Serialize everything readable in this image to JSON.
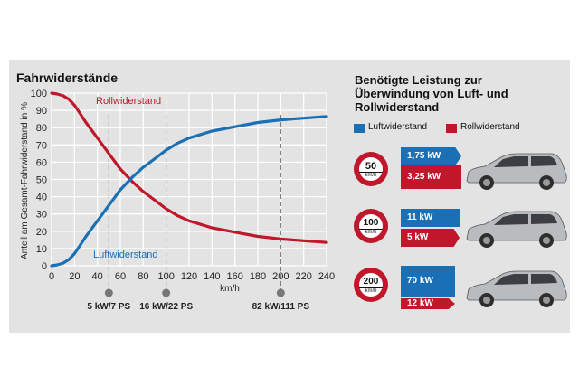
{
  "colors": {
    "air": "#1a6fb5",
    "roll": "#c0172b",
    "panel": "#e3e3e3",
    "grid": "#ffffff"
  },
  "chart_data": {
    "type": "line",
    "title": "Fahrwiderstände",
    "xlabel": "km/h",
    "ylabel": "Anteil am Gesamt-Fahrwiderstand in %",
    "xlim": [
      0,
      240
    ],
    "ylim": [
      0,
      100
    ],
    "xticks": [
      "0",
      "20",
      "40",
      "60",
      "80",
      "100",
      "120",
      "140",
      "160",
      "180",
      "200",
      "220",
      "240"
    ],
    "yticks": [
      "0",
      "10",
      "20",
      "30",
      "40",
      "50",
      "60",
      "70",
      "80",
      "90",
      "100"
    ],
    "grid": true,
    "series": [
      {
        "name": "Rollwiderstand",
        "color": "#c0172b",
        "x": [
          0,
          5,
          10,
          15,
          20,
          25,
          30,
          40,
          50,
          60,
          70,
          80,
          90,
          100,
          110,
          120,
          130,
          140,
          160,
          180,
          200,
          220,
          240
        ],
        "y": [
          100,
          99.5,
          98.5,
          96.5,
          93,
          88,
          83,
          74,
          65,
          56,
          49,
          43,
          38,
          33,
          29,
          26,
          24,
          22,
          19.5,
          17,
          15.5,
          14.5,
          13.5
        ]
      },
      {
        "name": "Luftwiderstand",
        "color": "#1a6fb5",
        "x": [
          0,
          5,
          10,
          15,
          20,
          25,
          30,
          40,
          50,
          60,
          70,
          80,
          90,
          100,
          110,
          120,
          130,
          140,
          160,
          180,
          200,
          220,
          240
        ],
        "y": [
          0,
          0.5,
          1.5,
          3.5,
          7,
          12,
          17,
          26,
          35,
          44,
          51,
          57,
          62,
          67,
          71,
          74,
          76,
          78,
          80.5,
          83,
          84.5,
          85.5,
          86.5
        ]
      }
    ],
    "markers": [
      {
        "x": 50,
        "label": "5 kW/7 PS"
      },
      {
        "x": 100,
        "label": "16 kW/22 PS"
      },
      {
        "x": 200,
        "label": "82 kW/111 PS"
      }
    ]
  },
  "right_panel": {
    "title_lines": [
      "Benötigte Leistung zur",
      "Überwindung von Luft- und",
      "Rollwiderstand"
    ],
    "legend": [
      {
        "label": "Luftwiderstand",
        "color": "#1a6fb5"
      },
      {
        "label": "Rollwiderstand",
        "color": "#c0172b"
      }
    ],
    "rows": [
      {
        "speed": "50",
        "unit": "km/h",
        "air_label": "1,75 kW",
        "roll_label": "3,25 kW",
        "air_kw": 1.75,
        "roll_kw": 3.25
      },
      {
        "speed": "100",
        "unit": "km/h",
        "air_label": "11 kW",
        "roll_label": "5 kW",
        "air_kw": 11,
        "roll_kw": 5
      },
      {
        "speed": "200",
        "unit": "km/h",
        "air_label": "70 kW",
        "roll_label": "12 kW",
        "air_kw": 70,
        "roll_kw": 12
      }
    ]
  }
}
